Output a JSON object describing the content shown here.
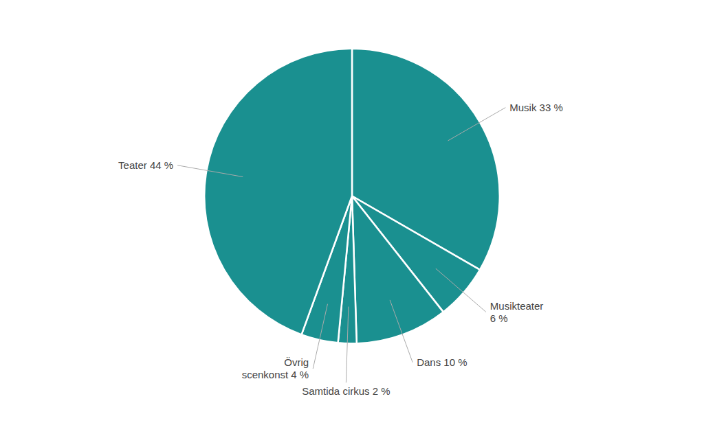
{
  "chart_data": {
    "type": "pie",
    "values": [
      33,
      6,
      10,
      2,
      4,
      44
    ],
    "value_labels": [
      "Musik 33 %",
      "Musikteater\n6 %",
      "Dans 10 %",
      "Samtida cirkus 2 %",
      "Övrig\nscenkonst 4 %",
      "Teater 44 %"
    ],
    "color": "#1a9090",
    "data_labels": true
  }
}
